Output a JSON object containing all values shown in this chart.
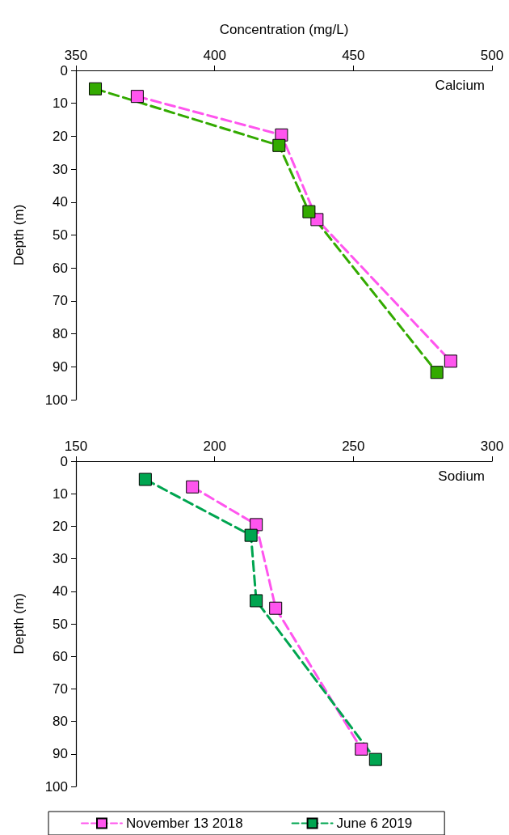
{
  "chart_data": [
    {
      "type": "line",
      "xlabel": "Concentration (mg/L)",
      "ylabel": "Depth (m)",
      "annotations": [
        "Calcium"
      ],
      "xlim": [
        350,
        500
      ],
      "xticks": [
        350,
        400,
        450,
        500
      ],
      "ylim": [
        100,
        0
      ],
      "yticks": [
        0,
        10,
        20,
        30,
        40,
        50,
        60,
        70,
        80,
        90,
        100
      ],
      "grid": false,
      "legend": false,
      "marker": "square",
      "line_style": "dashed",
      "series": [
        {
          "color": "#ff55ee",
          "x": [
            372.1,
            424.1,
            436.9,
            485.1
          ],
          "values": [
            7.9,
            19.6,
            45.3,
            88.3
          ]
        },
        {
          "color": "#33aa00",
          "x": [
            357.0,
            423.2,
            434.0,
            480.1
          ],
          "values": [
            5.6,
            22.8,
            42.9,
            91.7
          ]
        }
      ]
    },
    {
      "type": "line",
      "ylabel": "Depth (m)",
      "annotations": [
        "Sodium"
      ],
      "xlim": [
        150,
        300
      ],
      "xticks": [
        150,
        200,
        250,
        300
      ],
      "ylim": [
        100,
        0
      ],
      "yticks": [
        0,
        10,
        20,
        30,
        40,
        50,
        60,
        70,
        80,
        90,
        100
      ],
      "grid": false,
      "legend": "bottom",
      "marker": "square",
      "line_style": "dashed",
      "series": [
        {
          "name": "November 13 2018",
          "color": "#ff55ee",
          "x": [
            192.0,
            215.0,
            222.0,
            252.9
          ],
          "values": [
            7.9,
            19.5,
            45.2,
            88.5
          ]
        },
        {
          "name": "June 6 2019",
          "color": "#00a550",
          "x": [
            175.0,
            213.1,
            215.0,
            258.0
          ],
          "values": [
            5.6,
            22.8,
            42.9,
            91.7
          ]
        }
      ]
    }
  ]
}
